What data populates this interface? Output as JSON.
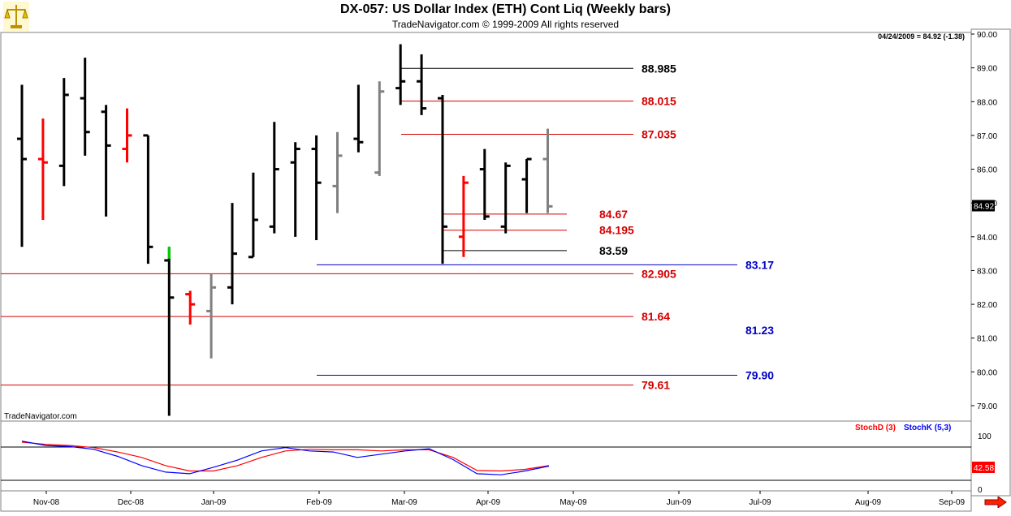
{
  "header": {
    "title": "DX-057:  US Dollar Index (ETH) Cont Liq  (Weekly bars)",
    "subtitle": "TradeNavigator.com © 1999-2009 All rights reserved",
    "last_readout": "04/24/2009 = 84.92 (-1.38)",
    "watermark": "TradeNavigator.com",
    "price_tag": "84.92",
    "stoch_tag": "42.58"
  },
  "colors": {
    "up": "#000000",
    "down": "#ff0000",
    "neutral": "#808080",
    "signal": "#00cc00",
    "fib_red": "#d40000",
    "fib_black": "#000000",
    "fib_blue": "#0000c8",
    "stochD": "#ff0000",
    "stochK": "#0000ff"
  },
  "chart_data": [
    {
      "type": "ohlc",
      "title": "DX-057:  US Dollar Index (ETH) Cont Liq  (Weekly bars)",
      "ylim": [
        78.5,
        90.0
      ],
      "y_ticks": [
        "90.00",
        "89.00",
        "88.00",
        "87.00",
        "86.00",
        "85.00",
        "84.00",
        "83.00",
        "82.00",
        "81.00",
        "80.00",
        "79.00"
      ],
      "x_ticks": [
        "Nov-08",
        "Dec-08",
        "Jan-09",
        "Feb-09",
        "Mar-09",
        "Apr-09",
        "May-09",
        "Jun-09",
        "Jul-09",
        "Aug-09",
        "Sep-09"
      ],
      "bars": [
        {
          "o": 86.9,
          "h": 88.5,
          "l": 83.7,
          "c": 86.3,
          "color": "up"
        },
        {
          "o": 86.3,
          "h": 87.5,
          "l": 84.5,
          "c": 86.2,
          "color": "down"
        },
        {
          "o": 86.1,
          "h": 88.7,
          "l": 85.5,
          "c": 88.2,
          "color": "up"
        },
        {
          "o": 88.1,
          "h": 89.3,
          "l": 86.4,
          "c": 87.1,
          "color": "up"
        },
        {
          "o": 87.7,
          "h": 87.9,
          "l": 84.6,
          "c": 86.7,
          "color": "up"
        },
        {
          "o": 86.6,
          "h": 87.8,
          "l": 86.2,
          "c": 87.0,
          "color": "down"
        },
        {
          "o": 87.0,
          "h": 87.0,
          "l": 83.2,
          "c": 83.7,
          "color": "up"
        },
        {
          "o": 83.3,
          "h": 83.7,
          "l": 78.7,
          "c": 82.2,
          "color": "up"
        },
        {
          "o": 82.3,
          "h": 82.4,
          "l": 81.4,
          "c": 82.0,
          "color": "down"
        },
        {
          "o": 81.8,
          "h": 82.9,
          "l": 80.4,
          "c": 82.5,
          "color": "neutral"
        },
        {
          "o": 82.5,
          "h": 85.0,
          "l": 82.0,
          "c": 83.5,
          "color": "up"
        },
        {
          "o": 83.4,
          "h": 85.9,
          "l": 83.4,
          "c": 84.5,
          "color": "up"
        },
        {
          "o": 84.3,
          "h": 87.4,
          "l": 84.1,
          "c": 86.0,
          "color": "up"
        },
        {
          "o": 86.2,
          "h": 86.8,
          "l": 84.0,
          "c": 86.6,
          "color": "up"
        },
        {
          "o": 86.6,
          "h": 87.0,
          "l": 83.9,
          "c": 85.6,
          "color": "up"
        },
        {
          "o": 85.5,
          "h": 87.1,
          "l": 84.7,
          "c": 86.4,
          "color": "neutral"
        },
        {
          "o": 86.9,
          "h": 88.5,
          "l": 86.5,
          "c": 86.8,
          "color": "up"
        },
        {
          "o": 85.9,
          "h": 88.6,
          "l": 85.8,
          "c": 88.3,
          "color": "neutral"
        },
        {
          "o": 88.4,
          "h": 89.7,
          "l": 87.9,
          "c": 88.6,
          "color": "up"
        },
        {
          "o": 88.6,
          "h": 89.4,
          "l": 87.6,
          "c": 87.8,
          "color": "up"
        },
        {
          "o": 88.1,
          "h": 88.2,
          "l": 83.2,
          "c": 84.3,
          "color": "up"
        },
        {
          "o": 84.0,
          "h": 85.8,
          "l": 83.4,
          "c": 85.6,
          "color": "down"
        },
        {
          "o": 86.0,
          "h": 86.6,
          "l": 84.5,
          "c": 84.6,
          "color": "up"
        },
        {
          "o": 84.3,
          "h": 86.2,
          "l": 84.1,
          "c": 86.1,
          "color": "up"
        },
        {
          "o": 85.7,
          "h": 86.3,
          "l": 84.7,
          "c": 86.3,
          "color": "up"
        },
        {
          "o": 86.3,
          "h": 87.2,
          "l": 84.7,
          "c": 84.9,
          "color": "neutral"
        }
      ],
      "levels": [
        {
          "value": 88.985,
          "label": "88.985",
          "color": "fib_black",
          "style": "short"
        },
        {
          "value": 88.015,
          "label": "88.015",
          "color": "fib_red",
          "style": "short"
        },
        {
          "value": 87.035,
          "label": "87.035",
          "color": "fib_red",
          "style": "short"
        },
        {
          "value": 84.67,
          "label": "84.67",
          "color": "fib_red",
          "style": "mid"
        },
        {
          "value": 84.195,
          "label": "84.195",
          "color": "fib_red",
          "style": "mid"
        },
        {
          "value": 83.59,
          "label": "83.59",
          "color": "fib_black",
          "style": "mid"
        },
        {
          "value": 83.17,
          "label": "83.17",
          "color": "fib_blue",
          "style": "blue"
        },
        {
          "value": 82.905,
          "label": "82.905",
          "color": "fib_red",
          "style": "long"
        },
        {
          "value": 81.64,
          "label": "81.64",
          "color": "fib_red",
          "style": "long"
        },
        {
          "value": 81.23,
          "label": "81.23",
          "color": "fib_blue",
          "style": "label-only"
        },
        {
          "value": 79.9,
          "label": "79.90",
          "color": "fib_blue",
          "style": "blue"
        },
        {
          "value": 79.61,
          "label": "79.61",
          "color": "fib_red",
          "style": "long"
        }
      ]
    },
    {
      "type": "line",
      "ylim": [
        0,
        100
      ],
      "y_ticks": [
        "100",
        "0"
      ],
      "series": [
        {
          "name": "StochD (3)",
          "color": "stochD",
          "values": [
            88,
            84,
            82,
            78,
            70,
            60,
            45,
            35,
            35,
            45,
            60,
            72,
            75,
            74,
            74,
            72,
            74,
            74,
            60,
            36,
            35,
            38,
            45
          ]
        },
        {
          "name": "StochK (5,3)",
          "color": "stochK",
          "values": [
            90,
            82,
            80,
            75,
            62,
            45,
            33,
            30,
            42,
            55,
            72,
            78,
            72,
            70,
            60,
            66,
            72,
            76,
            56,
            30,
            28,
            35,
            44
          ]
        }
      ]
    }
  ]
}
